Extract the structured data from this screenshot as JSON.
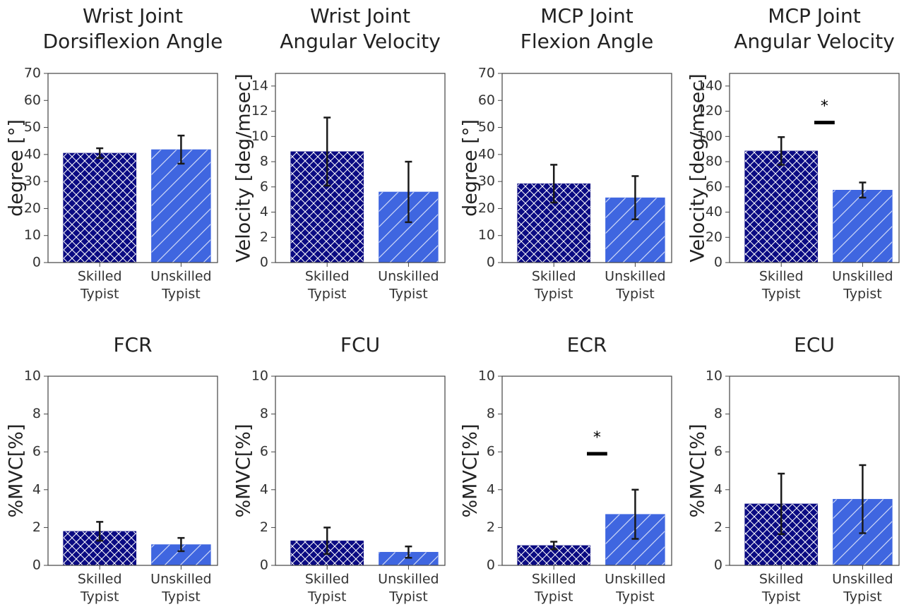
{
  "chart_data": [
    {
      "type": "bar",
      "title_lines": [
        "Wrist Joint",
        "Dorsiflexion Angle"
      ],
      "ylabel": "degree [°]",
      "categories": [
        [
          "Skilled",
          "Typist"
        ],
        [
          "Unskilled",
          "Typist"
        ]
      ],
      "values": [
        40.5,
        41.8
      ],
      "errors": [
        1.8,
        5.2
      ],
      "ylim": [
        0,
        70
      ],
      "yticks": [
        0,
        10,
        20,
        30,
        40,
        50,
        60,
        70
      ],
      "significance": null
    },
    {
      "type": "bar",
      "title_lines": [
        "Wrist Joint",
        "Angular Velocity"
      ],
      "ylabel": "Velocity [deg/msec]",
      "categories": [
        [
          "Skilled",
          "Typist"
        ],
        [
          "Unskilled",
          "Typist"
        ]
      ],
      "values": [
        8.8,
        5.6
      ],
      "errors": [
        2.7,
        2.4
      ],
      "ylim": [
        0,
        15
      ],
      "yticks": [
        0,
        2,
        4,
        6,
        8,
        10,
        12,
        14
      ],
      "significance": null
    },
    {
      "type": "bar",
      "title_lines": [
        "MCP Joint",
        "Flexion Angle"
      ],
      "ylabel": "degree [°]",
      "categories": [
        [
          "Skilled",
          "Typist"
        ],
        [
          "Unskilled",
          "Typist"
        ]
      ],
      "values": [
        29.2,
        24.0
      ],
      "errors": [
        7.0,
        8.0
      ],
      "ylim": [
        0,
        70
      ],
      "yticks": [
        0,
        10,
        20,
        30,
        40,
        50,
        60,
        70
      ],
      "significance": null
    },
    {
      "type": "bar",
      "title_lines": [
        "MCP Joint",
        "Angular Velocity"
      ],
      "ylabel": "Velocity [deg/msec]",
      "categories": [
        [
          "Skilled",
          "Typist"
        ],
        [
          "Unskilled",
          "Typist"
        ]
      ],
      "values": [
        88.5,
        57.5
      ],
      "errors": [
        11.0,
        6.0
      ],
      "ylim": [
        0,
        150
      ],
      "yticks": [
        0,
        20,
        40,
        60,
        80,
        100,
        120,
        140
      ],
      "significance": {
        "marker": "*",
        "level": 111
      }
    },
    {
      "type": "bar",
      "title_lines": [
        "FCR"
      ],
      "ylabel": "%MVC[%]",
      "categories": [
        [
          "Skilled",
          "Typist"
        ],
        [
          "Unskilled",
          "Typist"
        ]
      ],
      "values": [
        1.8,
        1.1
      ],
      "errors": [
        0.5,
        0.35
      ],
      "ylim": [
        0,
        10
      ],
      "yticks": [
        0,
        2,
        4,
        6,
        8,
        10
      ],
      "significance": null
    },
    {
      "type": "bar",
      "title_lines": [
        "FCU"
      ],
      "ylabel": "%MVC[%]",
      "categories": [
        [
          "Skilled",
          "Typist"
        ],
        [
          "Unskilled",
          "Typist"
        ]
      ],
      "values": [
        1.3,
        0.7
      ],
      "errors": [
        0.7,
        0.3
      ],
      "ylim": [
        0,
        10
      ],
      "yticks": [
        0,
        2,
        4,
        6,
        8,
        10
      ],
      "significance": null
    },
    {
      "type": "bar",
      "title_lines": [
        "ECR"
      ],
      "ylabel": "%MVC[%]",
      "categories": [
        [
          "Skilled",
          "Typist"
        ],
        [
          "Unskilled",
          "Typist"
        ]
      ],
      "values": [
        1.05,
        2.7
      ],
      "errors": [
        0.2,
        1.3
      ],
      "ylim": [
        0,
        10
      ],
      "yticks": [
        0,
        2,
        4,
        6,
        8,
        10
      ],
      "significance": {
        "marker": "*",
        "level": 5.9
      }
    },
    {
      "type": "bar",
      "title_lines": [
        "ECU"
      ],
      "ylabel": "%MVC[%]",
      "categories": [
        [
          "Skilled",
          "Typist"
        ],
        [
          "Unskilled",
          "Typist"
        ]
      ],
      "values": [
        3.25,
        3.5
      ],
      "errors": [
        1.6,
        1.8
      ],
      "ylim": [
        0,
        10
      ],
      "yticks": [
        0,
        2,
        4,
        6,
        8,
        10
      ],
      "significance": null
    }
  ],
  "style": {
    "skilled_color": "#0a0a82",
    "unskilled_color": "#3f66e0",
    "hatch_color": "#ffffff",
    "error_color": "#1a1a1a",
    "axis_color": "#444444"
  }
}
